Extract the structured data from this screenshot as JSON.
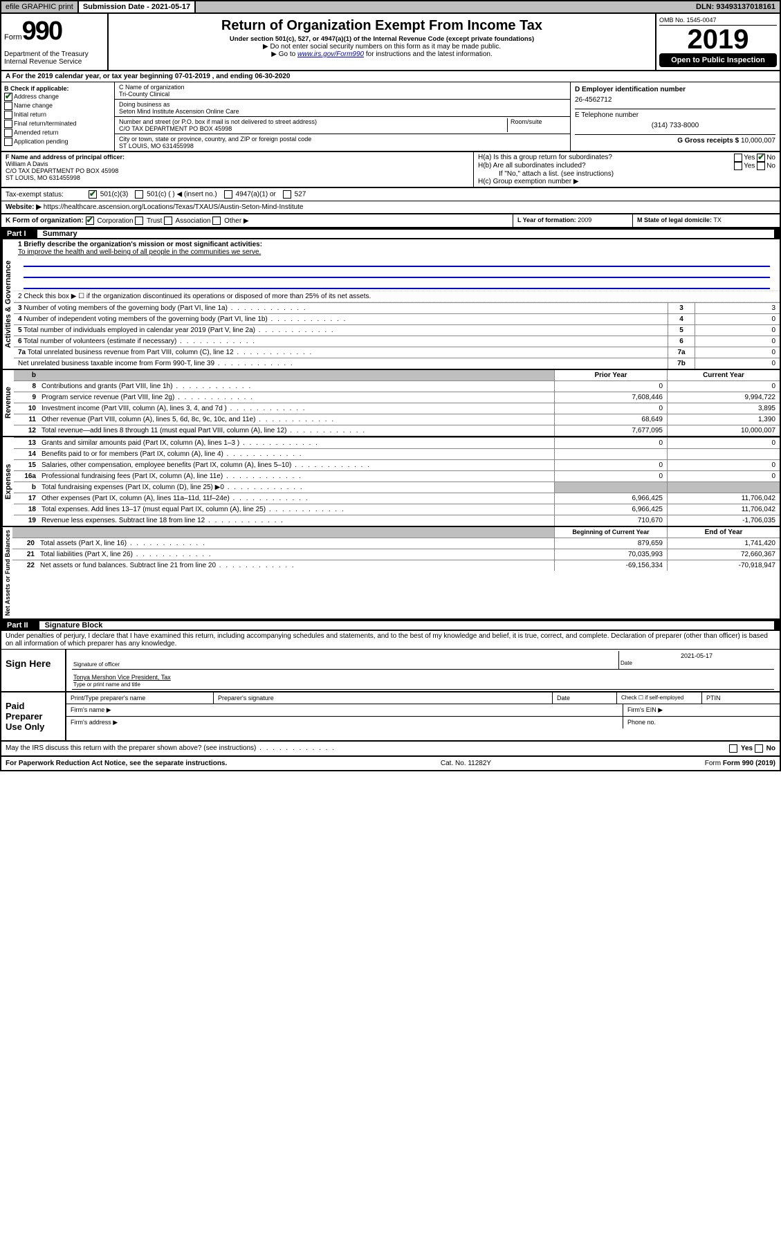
{
  "header": {
    "efile": "efile GRAPHIC print",
    "submission_date_label": "Submission Date - 2021-05-17",
    "dln": "DLN: 93493137018161"
  },
  "form": {
    "form_prefix": "Form",
    "form_number": "990",
    "dept": "Department of the Treasury\nInternal Revenue Service",
    "title": "Return of Organization Exempt From Income Tax",
    "subtitle": "Under section 501(c), 527, or 4947(a)(1) of the Internal Revenue Code (except private foundations)",
    "note1": "▶ Do not enter social security numbers on this form as it may be made public.",
    "note2_pre": "▶ Go to ",
    "note2_link": "www.irs.gov/Form990",
    "note2_post": " for instructions and the latest information.",
    "omb": "OMB No. 1545-0047",
    "year": "2019",
    "inspect": "Open to Public Inspection"
  },
  "period": "A For the 2019 calendar year, or tax year beginning 07-01-2019   , and ending 06-30-2020",
  "box_b": {
    "label": "B Check if applicable:",
    "items": [
      {
        "t": "Address change",
        "c": true
      },
      {
        "t": "Name change",
        "c": false
      },
      {
        "t": "Initial return",
        "c": false
      },
      {
        "t": "Final return/terminated",
        "c": false
      },
      {
        "t": "Amended return",
        "c": false
      },
      {
        "t": "Application pending",
        "c": false
      }
    ]
  },
  "box_c": {
    "name_label": "C Name of organization",
    "name": "Tri-County Clinical",
    "dba_label": "Doing business as",
    "dba": "Seton Mind Institute Ascension Online Care",
    "addr_label": "Number and street (or P.O. box if mail is not delivered to street address)",
    "room_label": "Room/suite",
    "addr": "C/O TAX DEPARTMENT PO BOX 45998",
    "city_label": "City or town, state or province, country, and ZIP or foreign postal code",
    "city": "ST LOUIS, MO  631455998"
  },
  "box_d": {
    "label": "D Employer identification number",
    "value": "26-4562712"
  },
  "box_e": {
    "label": "E Telephone number",
    "value": "(314) 733-8000"
  },
  "box_g": {
    "label": "G Gross receipts $",
    "value": "10,000,007"
  },
  "officer": {
    "label": "F Name and address of principal officer:",
    "name": "William A Davis",
    "addr": "C/O TAX DEPARTMENT PO BOX 45998\nST LOUIS, MO  631455998"
  },
  "box_h": {
    "a_label": "H(a)  Is this a group return for subordinates?",
    "a_yes": "Yes",
    "a_no": "No",
    "b_label": "H(b)  Are all subordinates included?",
    "b_note": "If \"No,\" attach a list. (see instructions)",
    "c_label": "H(c)  Group exemption number ▶"
  },
  "tax_status": {
    "label": "Tax-exempt status:",
    "opts": [
      "501(c)(3)",
      "501(c) (  ) ◀ (insert no.)",
      "4947(a)(1) or",
      "527"
    ]
  },
  "website": {
    "label": "Website: ▶",
    "value": "https://healthcare.ascension.org/Locations/Texas/TXAUS/Austin-Seton-Mind-Institute"
  },
  "formorg": {
    "label": "K Form of organization:",
    "opts": [
      "Corporation",
      "Trust",
      "Association",
      "Other ▶"
    ],
    "year_label": "L Year of formation:",
    "year": "2009",
    "state_label": "M State of legal domicile:",
    "state": "TX"
  },
  "part1": {
    "title": "Part I",
    "subtitle": "Summary",
    "gov_label": "Activities & Governance",
    "rev_label": "Revenue",
    "exp_label": "Expenses",
    "net_label": "Net Assets or Fund Balances",
    "q1_label": "1  Briefly describe the organization's mission or most significant activities:",
    "q1_text": "To improve the health and well-being of all people in the communities we serve.",
    "q2_label": "2   Check this box ▶ ☐  if the organization discontinued its operations or disposed of more than 25% of its net assets.",
    "lines": [
      {
        "n": "3",
        "t": "Number of voting members of the governing body (Part VI, line 1a)",
        "k": "3",
        "v": "3"
      },
      {
        "n": "4",
        "t": "Number of independent voting members of the governing body (Part VI, line 1b)",
        "k": "4",
        "v": "0"
      },
      {
        "n": "5",
        "t": "Total number of individuals employed in calendar year 2019 (Part V, line 2a)",
        "k": "5",
        "v": "0"
      },
      {
        "n": "6",
        "t": "Total number of volunteers (estimate if necessary)",
        "k": "6",
        "v": "0"
      },
      {
        "n": "7a",
        "t": "Total unrelated business revenue from Part VIII, column (C), line 12",
        "k": "7a",
        "v": "0"
      },
      {
        "n": "",
        "t": "Net unrelated business taxable income from Form 990-T, line 39",
        "k": "7b",
        "v": "0"
      }
    ],
    "col_prior": "Prior Year",
    "col_current": "Current Year",
    "rev_lines": [
      {
        "n": "8",
        "t": "Contributions and grants (Part VIII, line 1h)",
        "p": "0",
        "c": "0"
      },
      {
        "n": "9",
        "t": "Program service revenue (Part VIII, line 2g)",
        "p": "7,608,446",
        "c": "9,994,722"
      },
      {
        "n": "10",
        "t": "Investment income (Part VIII, column (A), lines 3, 4, and 7d )",
        "p": "0",
        "c": "3,895"
      },
      {
        "n": "11",
        "t": "Other revenue (Part VIII, column (A), lines 5, 6d, 8c, 9c, 10c, and 11e)",
        "p": "68,649",
        "c": "1,390"
      },
      {
        "n": "12",
        "t": "Total revenue—add lines 8 through 11 (must equal Part VIII, column (A), line 12)",
        "p": "7,677,095",
        "c": "10,000,007"
      }
    ],
    "exp_lines": [
      {
        "n": "13",
        "t": "Grants and similar amounts paid (Part IX, column (A), lines 1–3 )",
        "p": "0",
        "c": "0"
      },
      {
        "n": "14",
        "t": "Benefits paid to or for members (Part IX, column (A), line 4)",
        "p": "",
        "c": ""
      },
      {
        "n": "15",
        "t": "Salaries, other compensation, employee benefits (Part IX, column (A), lines 5–10)",
        "p": "0",
        "c": "0"
      },
      {
        "n": "16a",
        "t": "Professional fundraising fees (Part IX, column (A), line 11e)",
        "p": "0",
        "c": "0"
      },
      {
        "n": "b",
        "t": "Total fundraising expenses (Part IX, column (D), line 25) ▶0",
        "p": "gray",
        "c": "gray"
      },
      {
        "n": "17",
        "t": "Other expenses (Part IX, column (A), lines 11a–11d, 11f–24e)",
        "p": "6,966,425",
        "c": "11,706,042"
      },
      {
        "n": "18",
        "t": "Total expenses. Add lines 13–17 (must equal Part IX, column (A), line 25)",
        "p": "6,966,425",
        "c": "11,706,042"
      },
      {
        "n": "19",
        "t": "Revenue less expenses. Subtract line 18 from line 12",
        "p": "710,670",
        "c": "-1,706,035"
      }
    ],
    "col_begin": "Beginning of Current Year",
    "col_end": "End of Year",
    "net_lines": [
      {
        "n": "20",
        "t": "Total assets (Part X, line 16)",
        "p": "879,659",
        "c": "1,741,420"
      },
      {
        "n": "21",
        "t": "Total liabilities (Part X, line 26)",
        "p": "70,035,993",
        "c": "72,660,367"
      },
      {
        "n": "22",
        "t": "Net assets or fund balances. Subtract line 21 from line 20",
        "p": "-69,156,334",
        "c": "-70,918,947"
      }
    ]
  },
  "part2": {
    "title": "Part II",
    "subtitle": "Signature Block",
    "perjury": "Under penalties of perjury, I declare that I have examined this return, including accompanying schedules and statements, and to the best of my knowledge and belief, it is true, correct, and complete. Declaration of preparer (other than officer) is based on all information of which preparer has any knowledge."
  },
  "sign": {
    "label": "Sign Here",
    "sig_of_officer": "Signature of officer",
    "date": "2021-05-17",
    "date_label": "Date",
    "printed": "Tonya Mershon  Vice President, Tax",
    "printed_label": "Type or print name and title"
  },
  "paid": {
    "label": "Paid Preparer Use Only",
    "h1": "Print/Type preparer's name",
    "h2": "Preparer's signature",
    "h3": "Date",
    "h4": "Check ☐ if self-employed",
    "h5": "PTIN",
    "firm_name": "Firm's name   ▶",
    "firm_ein": "Firm's EIN ▶",
    "firm_addr": "Firm's address ▶",
    "phone": "Phone no."
  },
  "discuss": "May the IRS discuss this return with the preparer shown above? (see instructions)",
  "footer": {
    "pra": "For Paperwork Reduction Act Notice, see the separate instructions.",
    "cat": "Cat. No. 11282Y",
    "form": "Form 990 (2019)"
  }
}
